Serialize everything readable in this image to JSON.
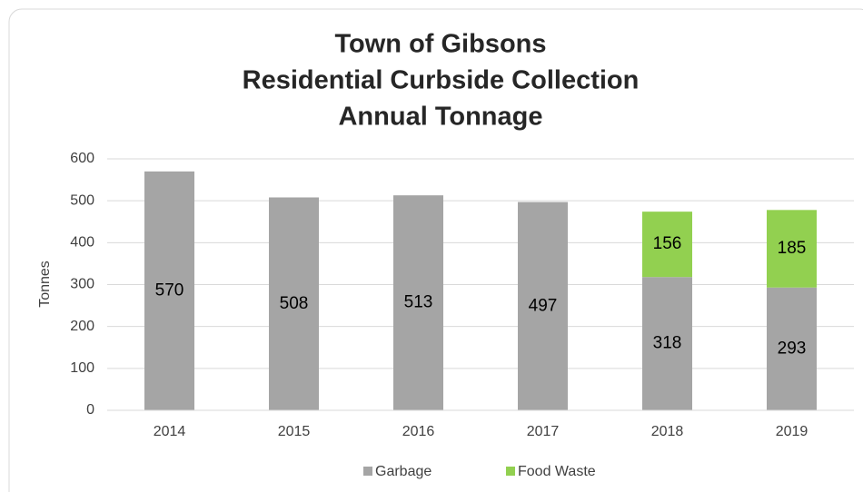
{
  "chart_data": {
    "type": "stacked_bar",
    "title": [
      "Town of Gibsons",
      "Residential Curbside Collection",
      "Annual Tonnage"
    ],
    "y_label": "Tonnes",
    "categories": [
      "2014",
      "2015",
      "2016",
      "2017",
      "2018",
      "2019"
    ],
    "series": [
      {
        "name": "Garbage",
        "color": "#a5a5a5",
        "values": [
          570,
          508,
          513,
          497,
          318,
          293
        ]
      },
      {
        "name": "Food Waste",
        "color": "#92d050",
        "values": [
          null,
          null,
          null,
          null,
          156,
          185
        ]
      }
    ],
    "ylim": [
      0,
      600
    ],
    "yticks": [
      0,
      100,
      200,
      300,
      400,
      500,
      600
    ],
    "grid": true,
    "legend": "bottom"
  }
}
